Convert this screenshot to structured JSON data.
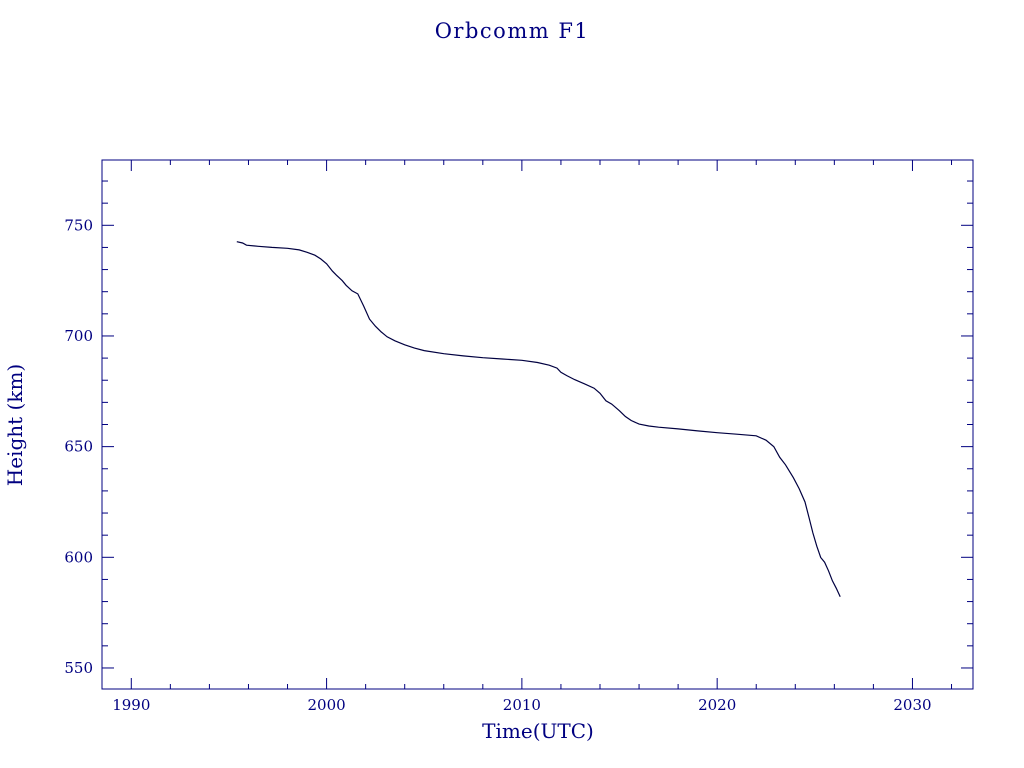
{
  "chart_data": {
    "type": "line",
    "title": "Orbcomm F1",
    "xlabel": "Time(UTC)",
    "ylabel": "Height (km)",
    "xlim": [
      1988.5,
      2033.1
    ],
    "ylim": [
      540.5,
      779.5
    ],
    "xticks": [
      1990,
      2000,
      2010,
      2020,
      2030
    ],
    "yticks": [
      550,
      600,
      650,
      700,
      750
    ],
    "grid": false,
    "colors": {
      "axis": "#000080",
      "line": "#000040",
      "text": "#000080"
    },
    "series": [
      {
        "x": [
          1995.4,
          1995.7,
          1995.9,
          1996.5,
          1997.2,
          1998.0,
          1998.6,
          1999.0,
          1999.4,
          1999.7,
          2000.0,
          2000.3,
          2000.5,
          2000.8,
          2001.0,
          2001.3,
          2001.6,
          2001.9,
          2002.2,
          2002.5,
          2002.8,
          2003.1,
          2003.5,
          2004.0,
          2004.5,
          2005.0,
          2006.0,
          2007.0,
          2008.0,
          2009.0,
          2010.0,
          2010.8,
          2011.4,
          2011.8,
          2012.0,
          2012.3,
          2012.7,
          2013.2,
          2013.7,
          2014.0,
          2014.3,
          2014.6,
          2015.0,
          2015.3,
          2015.6,
          2016.0,
          2016.5,
          2017.0,
          2018.0,
          2019.0,
          2020.0,
          2021.0,
          2022.0,
          2022.5,
          2022.9,
          2023.2,
          2023.5,
          2023.9,
          2024.2,
          2024.5,
          2024.7,
          2024.9,
          2025.1,
          2025.3,
          2025.5,
          2025.7,
          2025.9,
          2026.1,
          2026.3
        ],
        "y": [
          742.6,
          742.0,
          741.0,
          740.5,
          740.0,
          739.6,
          738.9,
          737.8,
          736.5,
          734.8,
          732.6,
          729.3,
          727.5,
          725.0,
          722.9,
          720.4,
          719.0,
          713.5,
          707.6,
          704.4,
          701.8,
          699.6,
          697.8,
          696.0,
          694.5,
          693.4,
          692.0,
          691.0,
          690.2,
          689.6,
          689.0,
          688.0,
          686.8,
          685.5,
          683.6,
          682.1,
          680.3,
          678.4,
          676.4,
          674.1,
          670.7,
          669.2,
          666.2,
          663.6,
          661.8,
          660.2,
          659.3,
          658.8,
          658.0,
          657.1,
          656.3,
          655.6,
          654.9,
          652.9,
          650.0,
          645.2,
          641.8,
          636.0,
          631.0,
          625.0,
          618.0,
          611.0,
          605.0,
          599.9,
          597.8,
          593.9,
          589.4,
          586.0,
          582.2
        ]
      }
    ]
  }
}
